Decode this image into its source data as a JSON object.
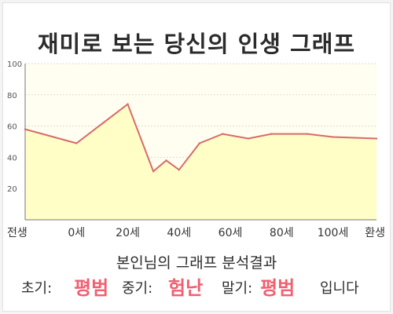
{
  "title": "재미로 보는 당신의 인생 그래프",
  "chart_data": {
    "type": "area",
    "x_tick_labels": [
      "전생",
      "0세",
      "20세",
      "40세",
      "60세",
      "80세",
      "100세",
      "환생"
    ],
    "y_ticks": [
      20,
      40,
      60,
      80,
      100
    ],
    "ylim": [
      0,
      100
    ],
    "grid": true,
    "legend": "none",
    "x": [
      -20,
      0,
      20,
      30,
      35,
      40,
      48,
      57,
      67,
      76,
      90,
      100,
      117
    ],
    "values": [
      58,
      49,
      74,
      31,
      38,
      32,
      49,
      55,
      52,
      55,
      55,
      53,
      52
    ],
    "line_color": "#d96a6a",
    "fill_color": "#fffec7",
    "plot_bg": "#fffef0"
  },
  "analysis": {
    "heading": "본인님의 그래프 분석결과",
    "early_label": "초기:",
    "early_value": "평범",
    "middle_label": "중기:",
    "middle_value": "험난",
    "late_label": "말기:",
    "late_value": "평범",
    "ending": "입니다",
    "highlight_color": "#f06070"
  }
}
